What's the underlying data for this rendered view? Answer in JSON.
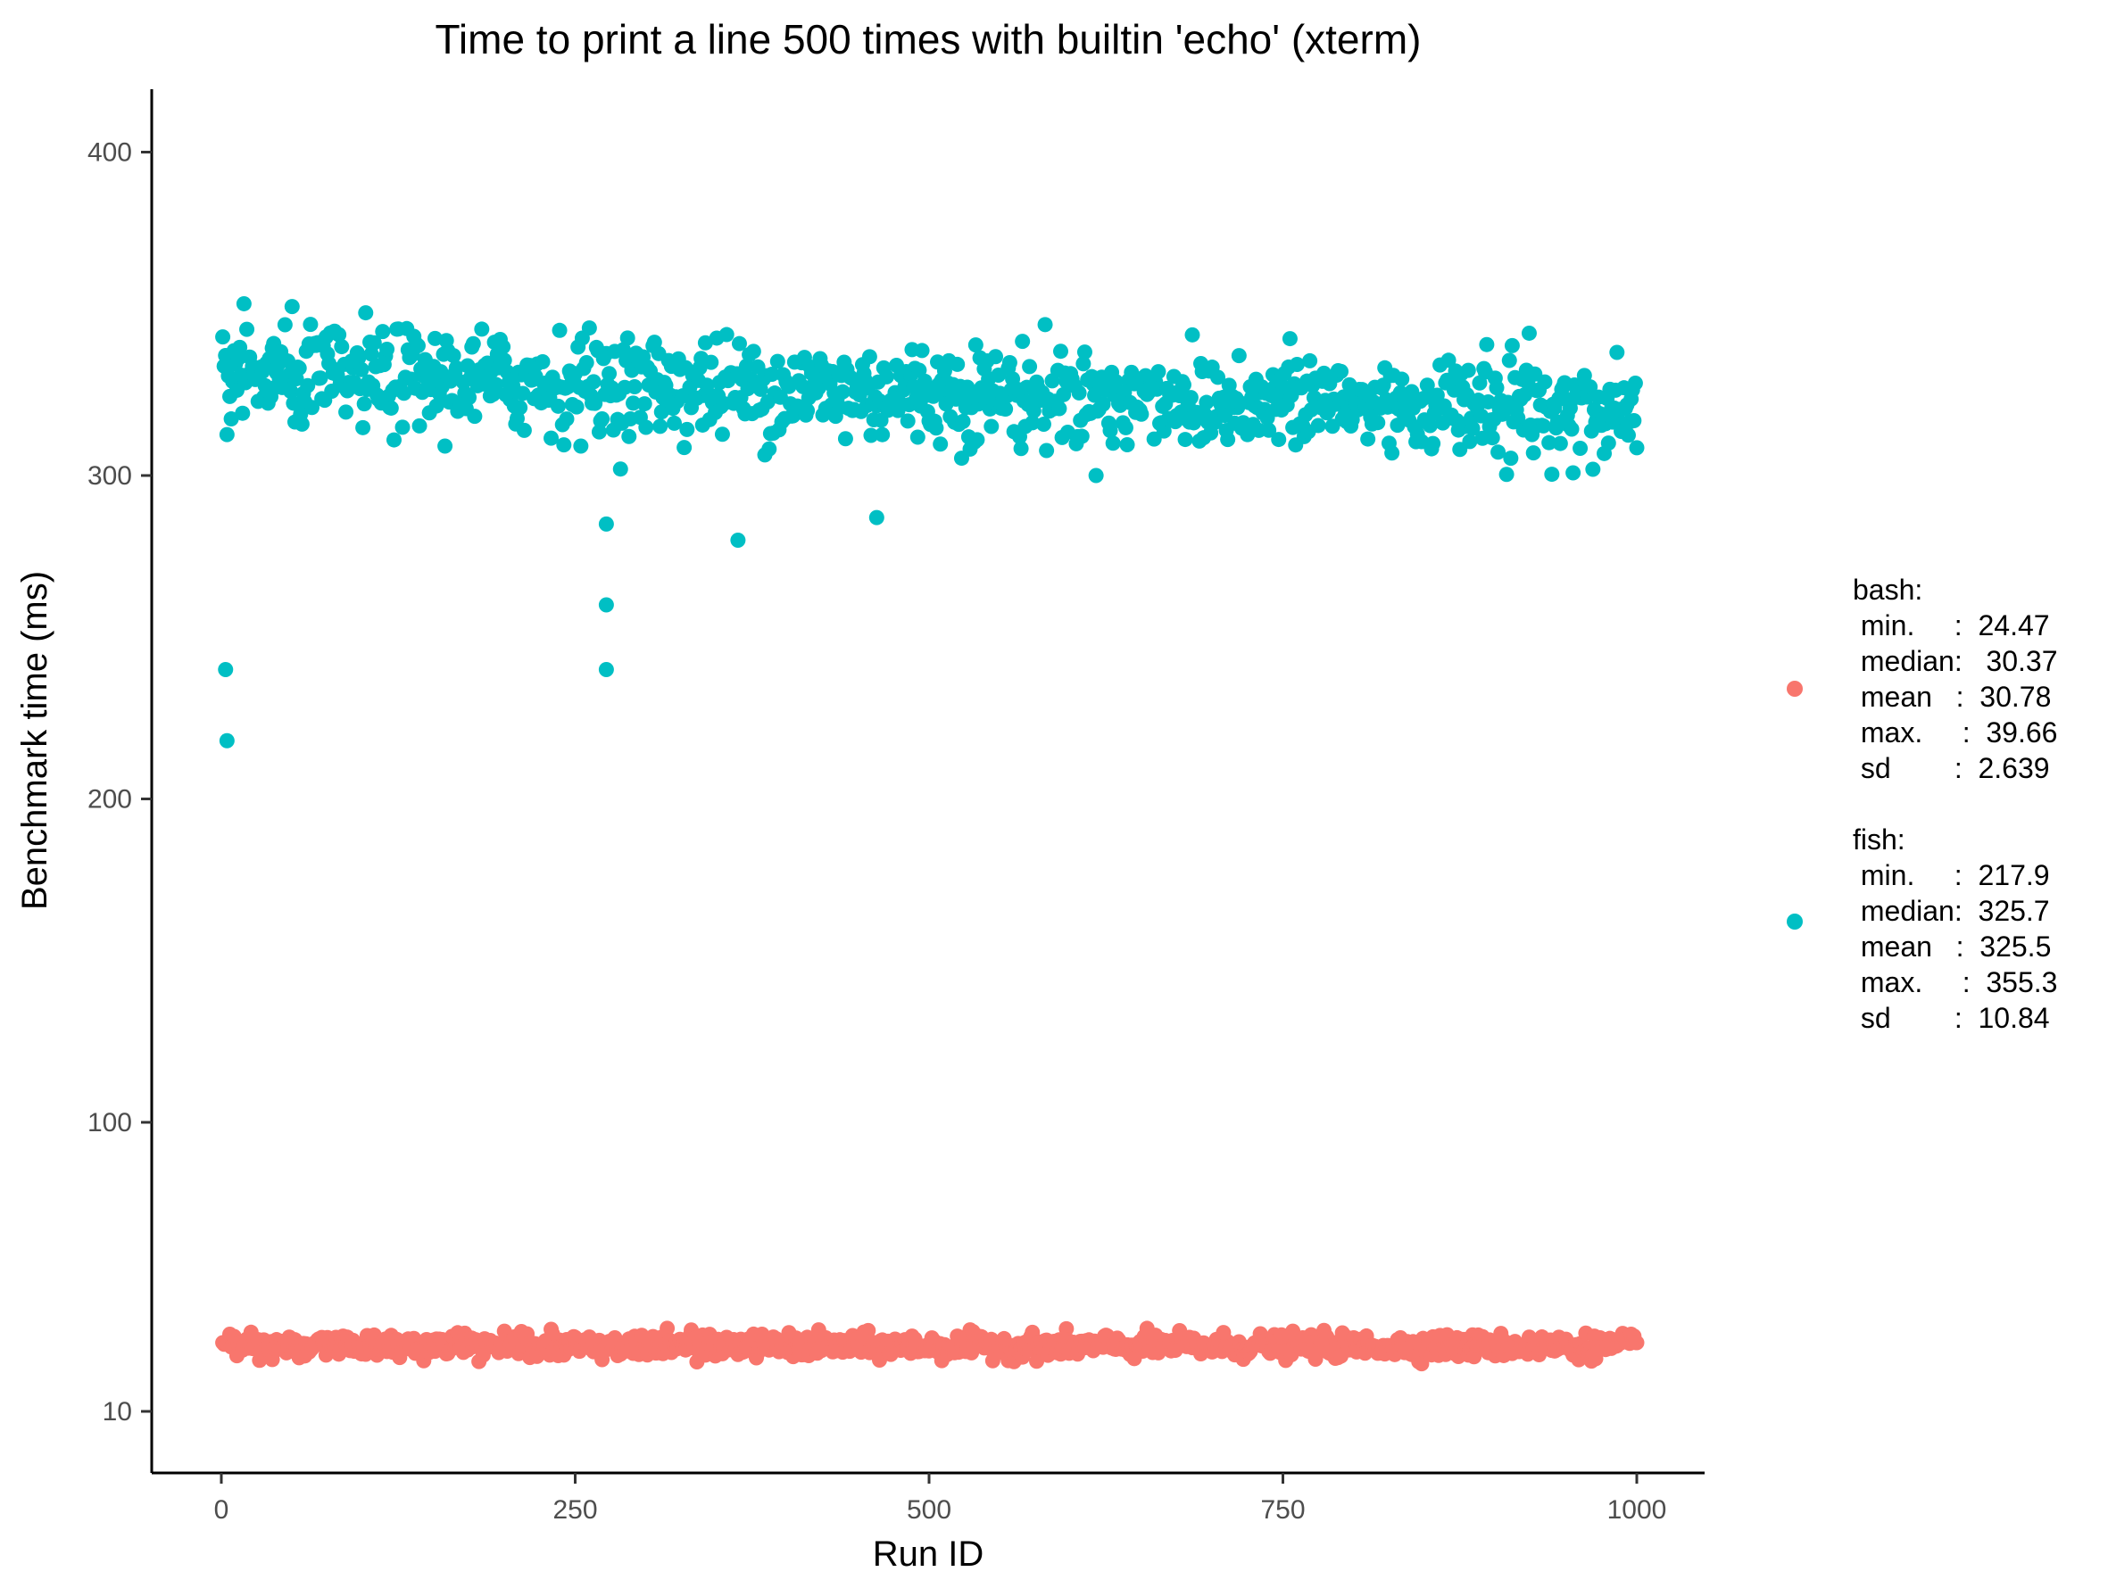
{
  "chart_data": {
    "type": "scatter",
    "title": "Time to print a line 500 times with builtin 'echo' (xterm)",
    "xlabel": "Run ID",
    "ylabel": "Benchmark time (ms)",
    "xlim": [
      -25,
      1025
    ],
    "x_ticks": [
      0,
      250,
      500,
      750,
      1000
    ],
    "x_tick_labels": [
      "0",
      "250",
      "500",
      "750",
      "1000"
    ],
    "y_ticks": [
      10,
      100,
      200,
      300,
      400
    ],
    "y_tick_labels": [
      "10",
      "100",
      "200",
      "300",
      "400"
    ],
    "y_scale_note": "bottom tick 10 sits below the linear 100-unit spacing",
    "grid": false,
    "legend_position": "right",
    "series": [
      {
        "name": "bash",
        "color": "#F8766D",
        "count": 1000,
        "x_range": [
          1,
          1000
        ],
        "summary_lines": [
          "bash:",
          " min.     :  24.47",
          " median:   30.37",
          " mean   :  30.78",
          " max.     :  39.66",
          " sd        :  2.639"
        ],
        "stats": {
          "min": 24.47,
          "median": 30.37,
          "mean": 30.78,
          "max": 39.66,
          "sd": 2.639
        }
      },
      {
        "name": "fish",
        "color": "#00BFC4",
        "count": 1000,
        "x_range": [
          1,
          1000
        ],
        "summary_lines": [
          "fish:",
          " min.     :  217.9",
          " median:  325.7",
          " mean   :  325.5",
          " max.     :  355.3",
          " sd        :  10.84"
        ],
        "stats": {
          "min": 217.9,
          "median": 325.7,
          "mean": 325.5,
          "max": 355.3,
          "sd": 10.84
        },
        "outliers": [
          {
            "x": 3,
            "y": 240
          },
          {
            "x": 4,
            "y": 218
          },
          {
            "x": 272,
            "y": 285
          },
          {
            "x": 272,
            "y": 260
          },
          {
            "x": 272,
            "y": 240
          },
          {
            "x": 365,
            "y": 280
          },
          {
            "x": 463,
            "y": 287
          }
        ]
      }
    ]
  }
}
